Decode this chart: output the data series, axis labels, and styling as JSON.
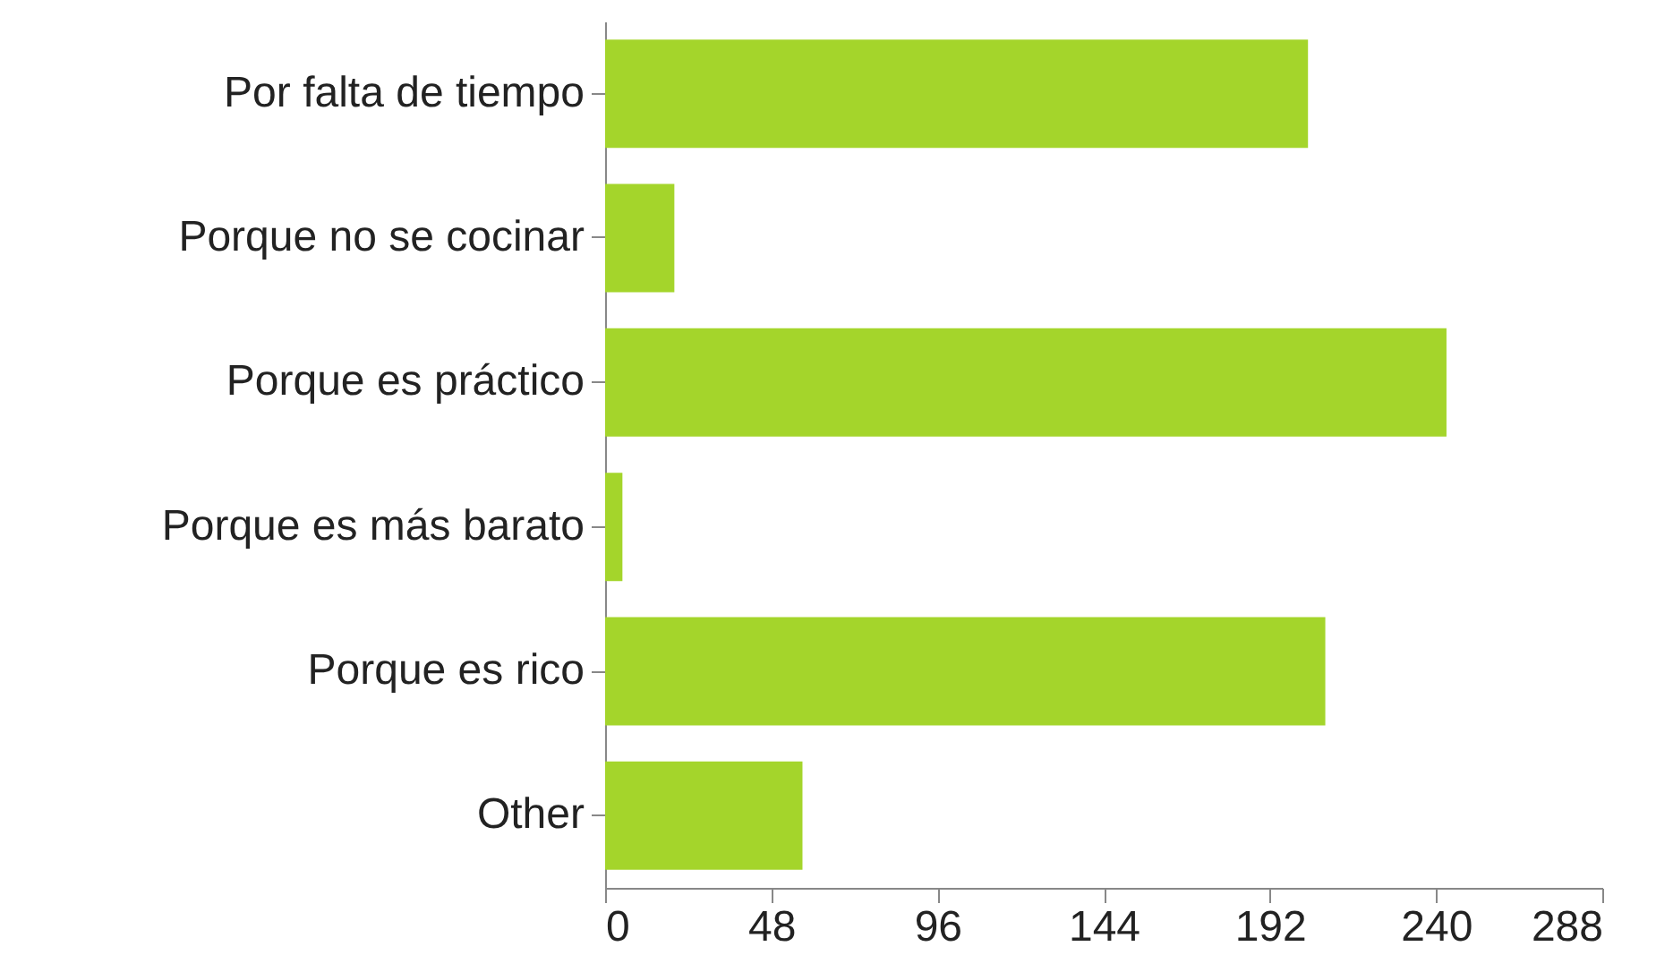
{
  "chart_data": {
    "type": "bar",
    "orientation": "horizontal",
    "categories": [
      "Por falta de tiempo",
      "Porque no se cocinar",
      "Porque es práctico",
      "Porque es más barato",
      "Porque es rico",
      "Other"
    ],
    "values": [
      203,
      20,
      243,
      5,
      208,
      57
    ],
    "color": "#a4d52b",
    "xlim": [
      0,
      288
    ],
    "xticks": [
      0,
      48,
      96,
      144,
      192,
      240,
      288
    ],
    "grid": false
  }
}
